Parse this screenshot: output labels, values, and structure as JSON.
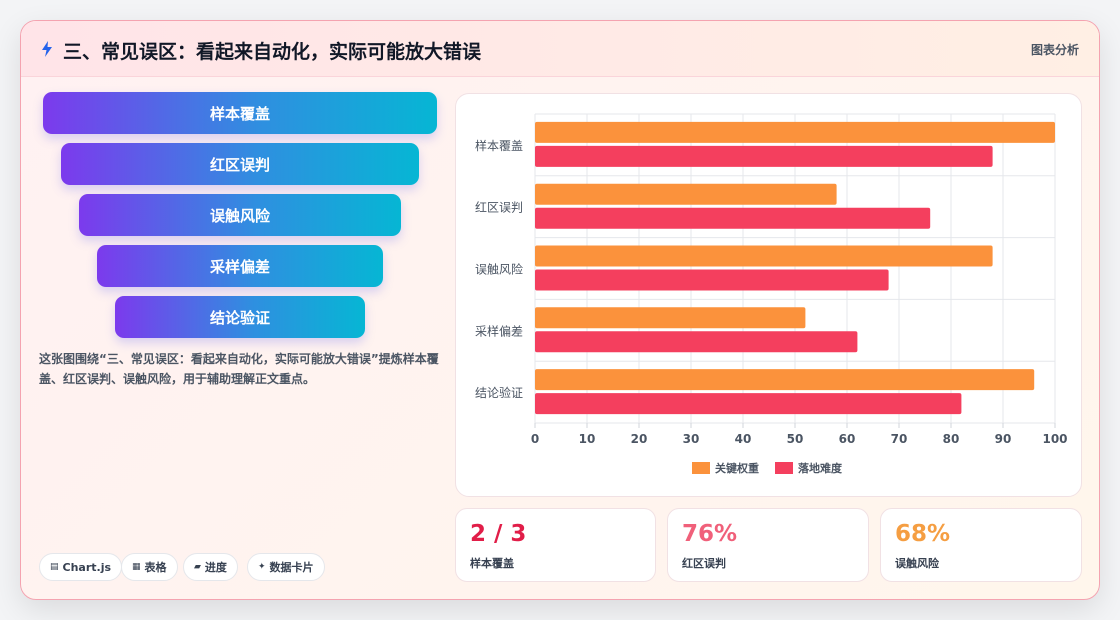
{
  "header": {
    "title": "三、常见误区：看起来自动化，实际可能放大错误",
    "tag": "图表分析"
  },
  "funnel": {
    "items": [
      "样本覆盖",
      "红区误判",
      "误触风险",
      "采样偏差",
      "结论验证"
    ]
  },
  "description": "这张图围绕“三、常见误区：看起来自动化，实际可能放大错误”提炼样本覆盖、红区误判、误触风险，用于辅助理解正文重点。",
  "chips": [
    {
      "icon": "▤",
      "label": "Chart.js"
    },
    {
      "icon": "▦",
      "label": "表格"
    },
    {
      "icon": "▰",
      "label": "进度"
    },
    {
      "icon": "✦",
      "label": "数据卡片"
    }
  ],
  "stats": [
    {
      "value": "2 / 3",
      "label": "样本覆盖",
      "color": "#e11d48"
    },
    {
      "value": "76%",
      "label": "红区误判",
      "color": "#f0607a"
    },
    {
      "value": "68%",
      "label": "误触风险",
      "color": "#f59e42"
    }
  ],
  "colors": {
    "series1": "#fb923c",
    "series2": "#f43f5e"
  },
  "chart_data": {
    "type": "bar",
    "orientation": "horizontal",
    "categories": [
      "样本覆盖",
      "红区误判",
      "误触风险",
      "采样偏差",
      "结论验证"
    ],
    "series": [
      {
        "name": "关键权重",
        "values": [
          100,
          58,
          88,
          52,
          96
        ]
      },
      {
        "name": "落地难度",
        "values": [
          88,
          76,
          68,
          62,
          82
        ]
      }
    ],
    "xlim": [
      0,
      100
    ],
    "xticks": [
      0,
      10,
      20,
      30,
      40,
      50,
      60,
      70,
      80,
      90,
      100
    ],
    "grid": true,
    "legend": "bottom"
  }
}
